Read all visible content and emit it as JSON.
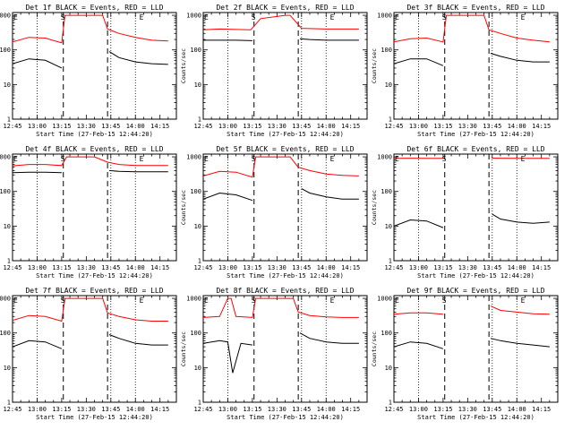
{
  "chart_data": {
    "type": "line",
    "shared": {
      "xlabel": "Start Time (27-Feb-15 12:44:20)",
      "ylabel": "Counts/sec",
      "y_scale": "log",
      "ylim": [
        1,
        1200
      ],
      "y_ticks": [
        "1",
        "10",
        "100",
        "1000"
      ],
      "x_range": [
        "12:45",
        "14:25"
      ],
      "x_ticks": [
        "12:45",
        "13:00",
        "13:15",
        "13:30",
        "13:45",
        "14:00",
        "14:15"
      ],
      "dotted_lines": [
        "13:00",
        "13:45",
        "14:00"
      ],
      "dashed_lines": [
        "13:16",
        "13:43"
      ],
      "markers": [
        {
          "symbol": "E",
          "x": "12:45"
        },
        {
          "symbol": "S",
          "x": "13:16"
        },
        {
          "symbol": "E",
          "x": "14:04"
        }
      ],
      "colors": {
        "black_series": "#000000",
        "red_series": "#ff0000"
      }
    },
    "panels": [
      {
        "title": "Det 1f BLACK = Events, RED = LLD",
        "series": [
          {
            "name": "BLACK",
            "x": [
              "12:45",
              "12:55",
              "13:05",
              "13:15",
              "13:20",
              "13:43",
              "13:44",
              "13:50",
              "14:00",
              "14:10",
              "14:20"
            ],
            "y": [
              40,
              55,
              50,
              30,
              null,
              null,
              90,
              60,
              45,
              40,
              38
            ]
          },
          {
            "name": "RED",
            "x": [
              "12:45",
              "12:55",
              "13:05",
              "13:15",
              "13:17",
              "13:40",
              "13:43",
              "13:50",
              "14:00",
              "14:10",
              "14:20"
            ],
            "y": [
              170,
              230,
              220,
              160,
              1000,
              1000,
              400,
              300,
              230,
              190,
              180
            ]
          }
        ]
      },
      {
        "title": "Det 2f BLACK = Events, RED = LLD",
        "series": [
          {
            "name": "BLACK",
            "x": [
              "12:45",
              "12:55",
              "13:05",
              "13:15",
              "13:20",
              "13:43",
              "13:44",
              "13:50",
              "14:00",
              "14:10",
              "14:20"
            ],
            "y": [
              190,
              190,
              190,
              185,
              null,
              null,
              210,
              200,
              190,
              190,
              190
            ]
          },
          {
            "name": "RED",
            "x": [
              "12:45",
              "12:55",
              "13:05",
              "13:14",
              "13:20",
              "13:35",
              "13:38",
              "13:45",
              "14:00",
              "14:10",
              "14:20"
            ],
            "y": [
              380,
              400,
              390,
              380,
              800,
              1000,
              1000,
              420,
              400,
              400,
              400
            ]
          }
        ]
      },
      {
        "title": "Det 3f BLACK = Events, RED = LLD",
        "series": [
          {
            "name": "BLACK",
            "x": [
              "12:45",
              "12:55",
              "13:05",
              "13:15",
              "13:20",
              "13:43",
              "13:44",
              "13:50",
              "14:00",
              "14:10",
              "14:20"
            ],
            "y": [
              40,
              55,
              55,
              35,
              null,
              null,
              80,
              65,
              50,
              45,
              45
            ]
          },
          {
            "name": "RED",
            "x": [
              "12:45",
              "12:55",
              "13:05",
              "13:15",
              "13:17",
              "13:40",
              "13:43",
              "13:50",
              "14:00",
              "14:10",
              "14:20"
            ],
            "y": [
              170,
              210,
              220,
              170,
              1000,
              1000,
              380,
              300,
              220,
              190,
              170
            ]
          }
        ]
      },
      {
        "title": "Det 4f BLACK = Events, RED = LLD",
        "series": [
          {
            "name": "BLACK",
            "x": [
              "12:45",
              "12:55",
              "13:05",
              "13:15",
              "13:20",
              "13:43",
              "13:44",
              "13:50",
              "14:00",
              "14:10",
              "14:20"
            ],
            "y": [
              350,
              360,
              360,
              350,
              null,
              null,
              400,
              380,
              370,
              370,
              370
            ]
          },
          {
            "name": "RED",
            "x": [
              "12:45",
              "12:55",
              "13:05",
              "13:15",
              "13:18",
              "13:35",
              "13:43",
              "13:50",
              "14:00",
              "14:10",
              "14:20"
            ],
            "y": [
              550,
              600,
              600,
              560,
              1000,
              1000,
              700,
              600,
              560,
              560,
              560
            ]
          }
        ]
      },
      {
        "title": "Det 5f BLACK = Events, RED = LLD",
        "series": [
          {
            "name": "BLACK",
            "x": [
              "12:45",
              "12:55",
              "13:05",
              "13:15",
              "13:20",
              "13:43",
              "13:45",
              "13:50",
              "14:00",
              "14:10",
              "14:20"
            ],
            "y": [
              60,
              90,
              80,
              55,
              null,
              null,
              120,
              90,
              70,
              60,
              60
            ]
          },
          {
            "name": "RED",
            "x": [
              "12:45",
              "12:55",
              "13:05",
              "13:15",
              "13:17",
              "13:38",
              "13:43",
              "13:50",
              "14:00",
              "14:10",
              "14:20"
            ],
            "y": [
              280,
              380,
              360,
              260,
              1000,
              1000,
              500,
              400,
              320,
              290,
              280
            ]
          }
        ]
      },
      {
        "title": "Det 6f BLACK = Events, RED = LLD",
        "series": [
          {
            "name": "BLACK",
            "x": [
              "12:45",
              "12:55",
              "13:05",
              "13:15",
              "13:20",
              "13:43",
              "13:45",
              "13:50",
              "14:00",
              "14:10",
              "14:20"
            ],
            "y": [
              10,
              15,
              14,
              9,
              null,
              null,
              22,
              16,
              13,
              12,
              13
            ]
          },
          {
            "name": "RED",
            "x": [
              "12:45",
              "12:55",
              "13:05",
              "13:15",
              "13:20",
              "13:43",
              "13:45",
              "13:50",
              "14:00",
              "14:10",
              "14:20"
            ],
            "y": [
              900,
              910,
              900,
              900,
              null,
              null,
              920,
              910,
              900,
              900,
              900
            ]
          }
        ]
      },
      {
        "title": "Det 7f BLACK = Events, RED = LLD",
        "series": [
          {
            "name": "BLACK",
            "x": [
              "12:45",
              "12:55",
              "13:05",
              "13:15",
              "13:20",
              "13:43",
              "13:44",
              "13:50",
              "14:00",
              "14:10",
              "14:20"
            ],
            "y": [
              40,
              60,
              55,
              35,
              null,
              null,
              90,
              70,
              50,
              45,
              45
            ]
          },
          {
            "name": "RED",
            "x": [
              "12:45",
              "12:55",
              "13:05",
              "13:15",
              "13:17",
              "13:40",
              "13:43",
              "13:50",
              "14:00",
              "14:10",
              "14:20"
            ],
            "y": [
              230,
              320,
              300,
              220,
              1000,
              1000,
              380,
              300,
              240,
              220,
              220
            ]
          }
        ]
      },
      {
        "title": "Det 8f BLACK = Events, RED = LLD",
        "series": [
          {
            "name": "BLACK",
            "x": [
              "12:45",
              "12:55",
              "13:00",
              "13:03",
              "13:08",
              "13:15",
              "13:20",
              "13:43",
              "13:44",
              "13:50",
              "14:00",
              "14:10",
              "14:20"
            ],
            "y": [
              50,
              60,
              55,
              7,
              50,
              45,
              null,
              null,
              100,
              70,
              55,
              50,
              50
            ]
          },
          {
            "name": "RED",
            "x": [
              "12:45",
              "12:55",
              "13:00",
              "13:02",
              "13:05",
              "13:15",
              "13:17",
              "13:40",
              "13:43",
              "13:50",
              "14:00",
              "14:10",
              "14:20"
            ],
            "y": [
              280,
              300,
              1000,
              1000,
              300,
              280,
              1000,
              1000,
              400,
              320,
              290,
              280,
              280
            ]
          }
        ]
      },
      {
        "title": "Det 9f BLACK = Events, RED = LLD",
        "series": [
          {
            "name": "BLACK",
            "x": [
              "12:45",
              "12:55",
              "13:05",
              "13:15",
              "13:20",
              "13:43",
              "13:44",
              "13:50",
              "14:00",
              "14:10",
              "14:20"
            ],
            "y": [
              40,
              55,
              50,
              35,
              null,
              null,
              70,
              60,
              50,
              45,
              40
            ]
          },
          {
            "name": "RED",
            "x": [
              "12:45",
              "12:55",
              "13:05",
              "13:15",
              "13:20",
              "13:43",
              "13:44",
              "13:50",
              "14:00",
              "14:10",
              "14:20"
            ],
            "y": [
              350,
              380,
              380,
              350,
              null,
              null,
              600,
              450,
              400,
              360,
              350
            ]
          }
        ]
      }
    ]
  }
}
